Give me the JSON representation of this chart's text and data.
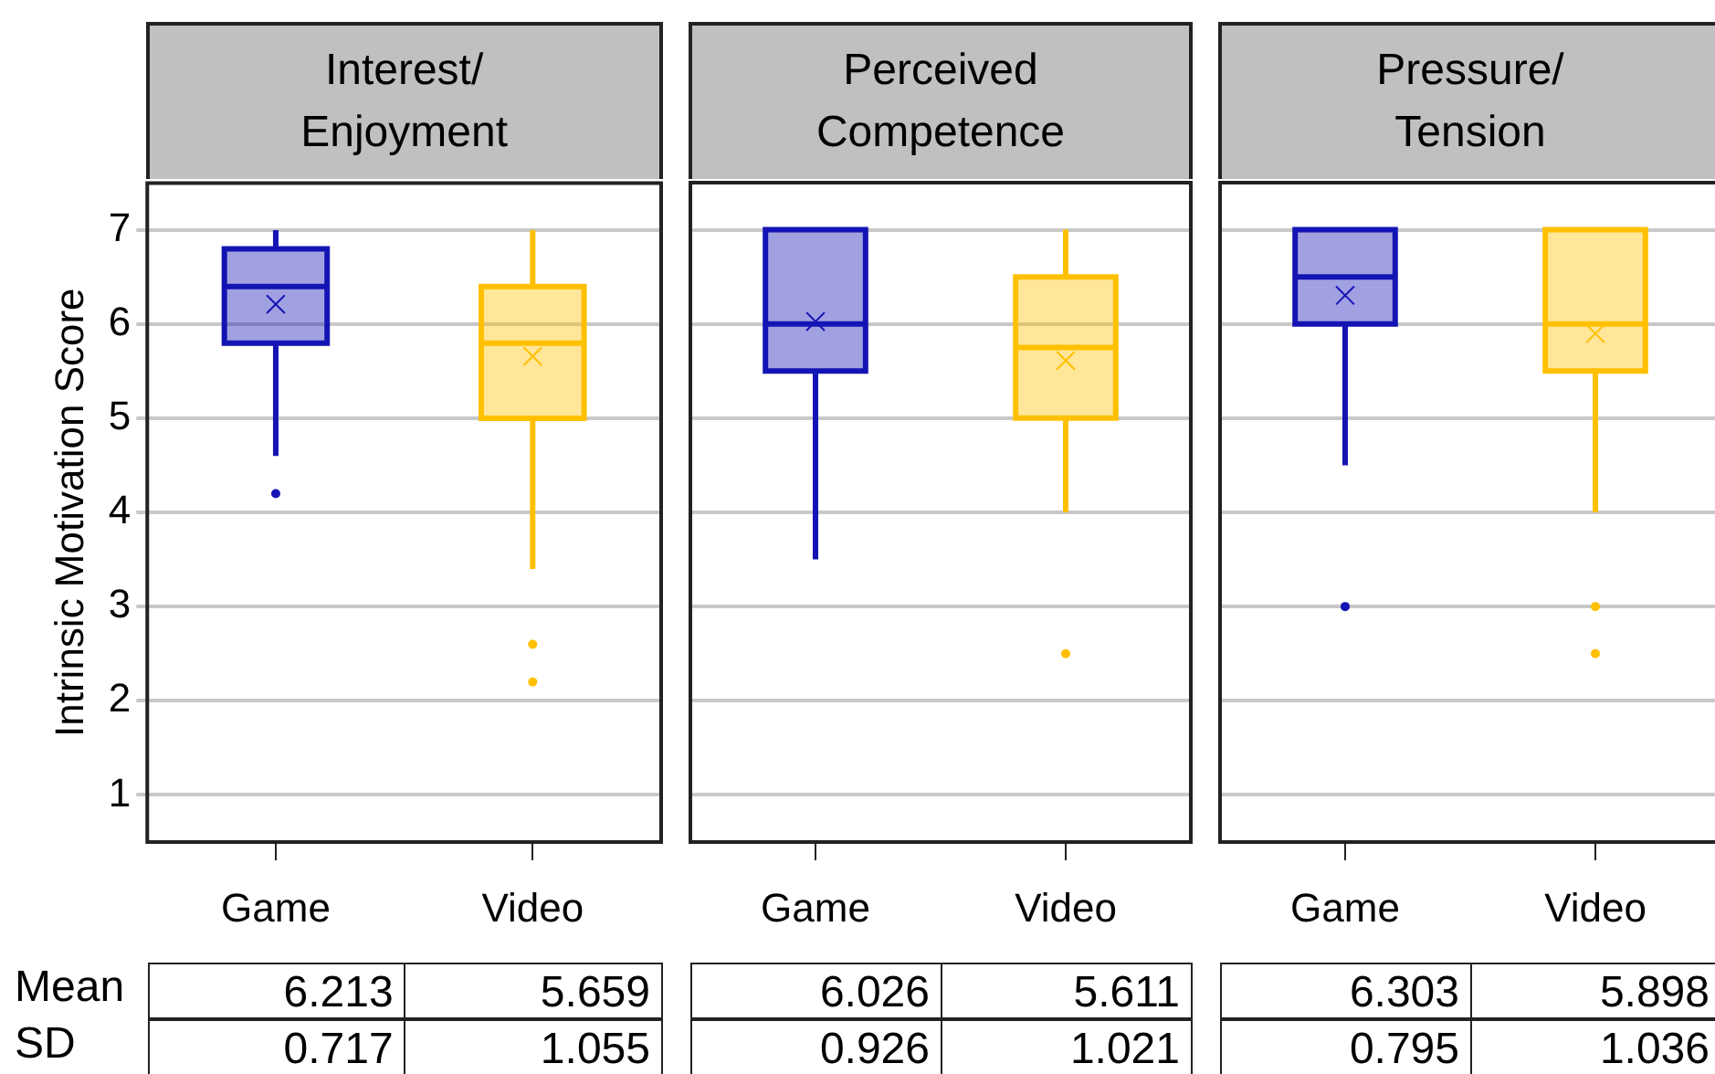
{
  "chart_data": [
    {
      "type": "box",
      "title": "Interest/\nEnjoyment",
      "ylabel": "Intrinsic Motivation Score",
      "categories": [
        "Game",
        "Video"
      ],
      "colors": [
        "#1414b4",
        "#ffc000"
      ],
      "boxes": [
        {
          "low": 4.6,
          "q1": 5.8,
          "median": 6.4,
          "q3": 6.8,
          "high": 7,
          "mean": 6.213,
          "outliers": [
            4.2
          ]
        },
        {
          "low": 3.4,
          "q1": 5.0,
          "median": 5.8,
          "q3": 6.4,
          "high": 7,
          "mean": 5.659,
          "outliers": [
            2.6,
            2.2
          ]
        }
      ],
      "ylim": [
        0.5,
        7.5
      ],
      "yticks": [
        1,
        2,
        3,
        4,
        5,
        6,
        7
      ],
      "grid": "y",
      "annotations": [
        "Mean",
        "SD",
        "6.213",
        "5.659",
        "0.717",
        "1.055"
      ]
    },
    {
      "type": "box",
      "title": "Perceived\nCompetence",
      "categories": [
        "Game",
        "Video"
      ],
      "colors": [
        "#1414b4",
        "#ffc000"
      ],
      "boxes": [
        {
          "low": 3.5,
          "q1": 5.5,
          "median": 6.0,
          "q3": 7,
          "high": 7,
          "mean": 6.026
        },
        {
          "low": 4.0,
          "q1": 5.0,
          "median": 5.75,
          "q3": 6.5,
          "high": 7,
          "mean": 5.611,
          "outliers": [
            2.5
          ]
        }
      ],
      "ylim": [
        0.5,
        7.5
      ],
      "yticks": [
        1,
        2,
        3,
        4,
        5,
        6,
        7
      ],
      "grid": "y",
      "tick_labels": "x",
      "annotations": [
        "6.026",
        "5.611",
        "0.926",
        "1.021"
      ]
    },
    {
      "type": "box",
      "title": "Pressure/\nTension",
      "categories": [
        "Game",
        "Video"
      ],
      "colors": [
        "#1414b4",
        "#ffc000"
      ],
      "boxes": [
        {
          "low": 4.5,
          "q1": 6.0,
          "median": 6.5,
          "q3": 7,
          "high": 7,
          "mean": 6.303,
          "outliers": [
            3.0
          ]
        },
        {
          "low": 4.0,
          "q1": 5.5,
          "median": 6.0,
          "q3": 7,
          "high": 7,
          "mean": 5.898,
          "outliers": [
            3.0,
            2.5
          ]
        }
      ],
      "ylim": [
        0.5,
        7.5
      ],
      "yticks": [
        1,
        2,
        3,
        4,
        5,
        6,
        7
      ],
      "grid": "y",
      "tick_labels": "x",
      "annotations": [
        "6.303",
        "5.898",
        "0.795",
        "1.036"
      ]
    }
  ]
}
